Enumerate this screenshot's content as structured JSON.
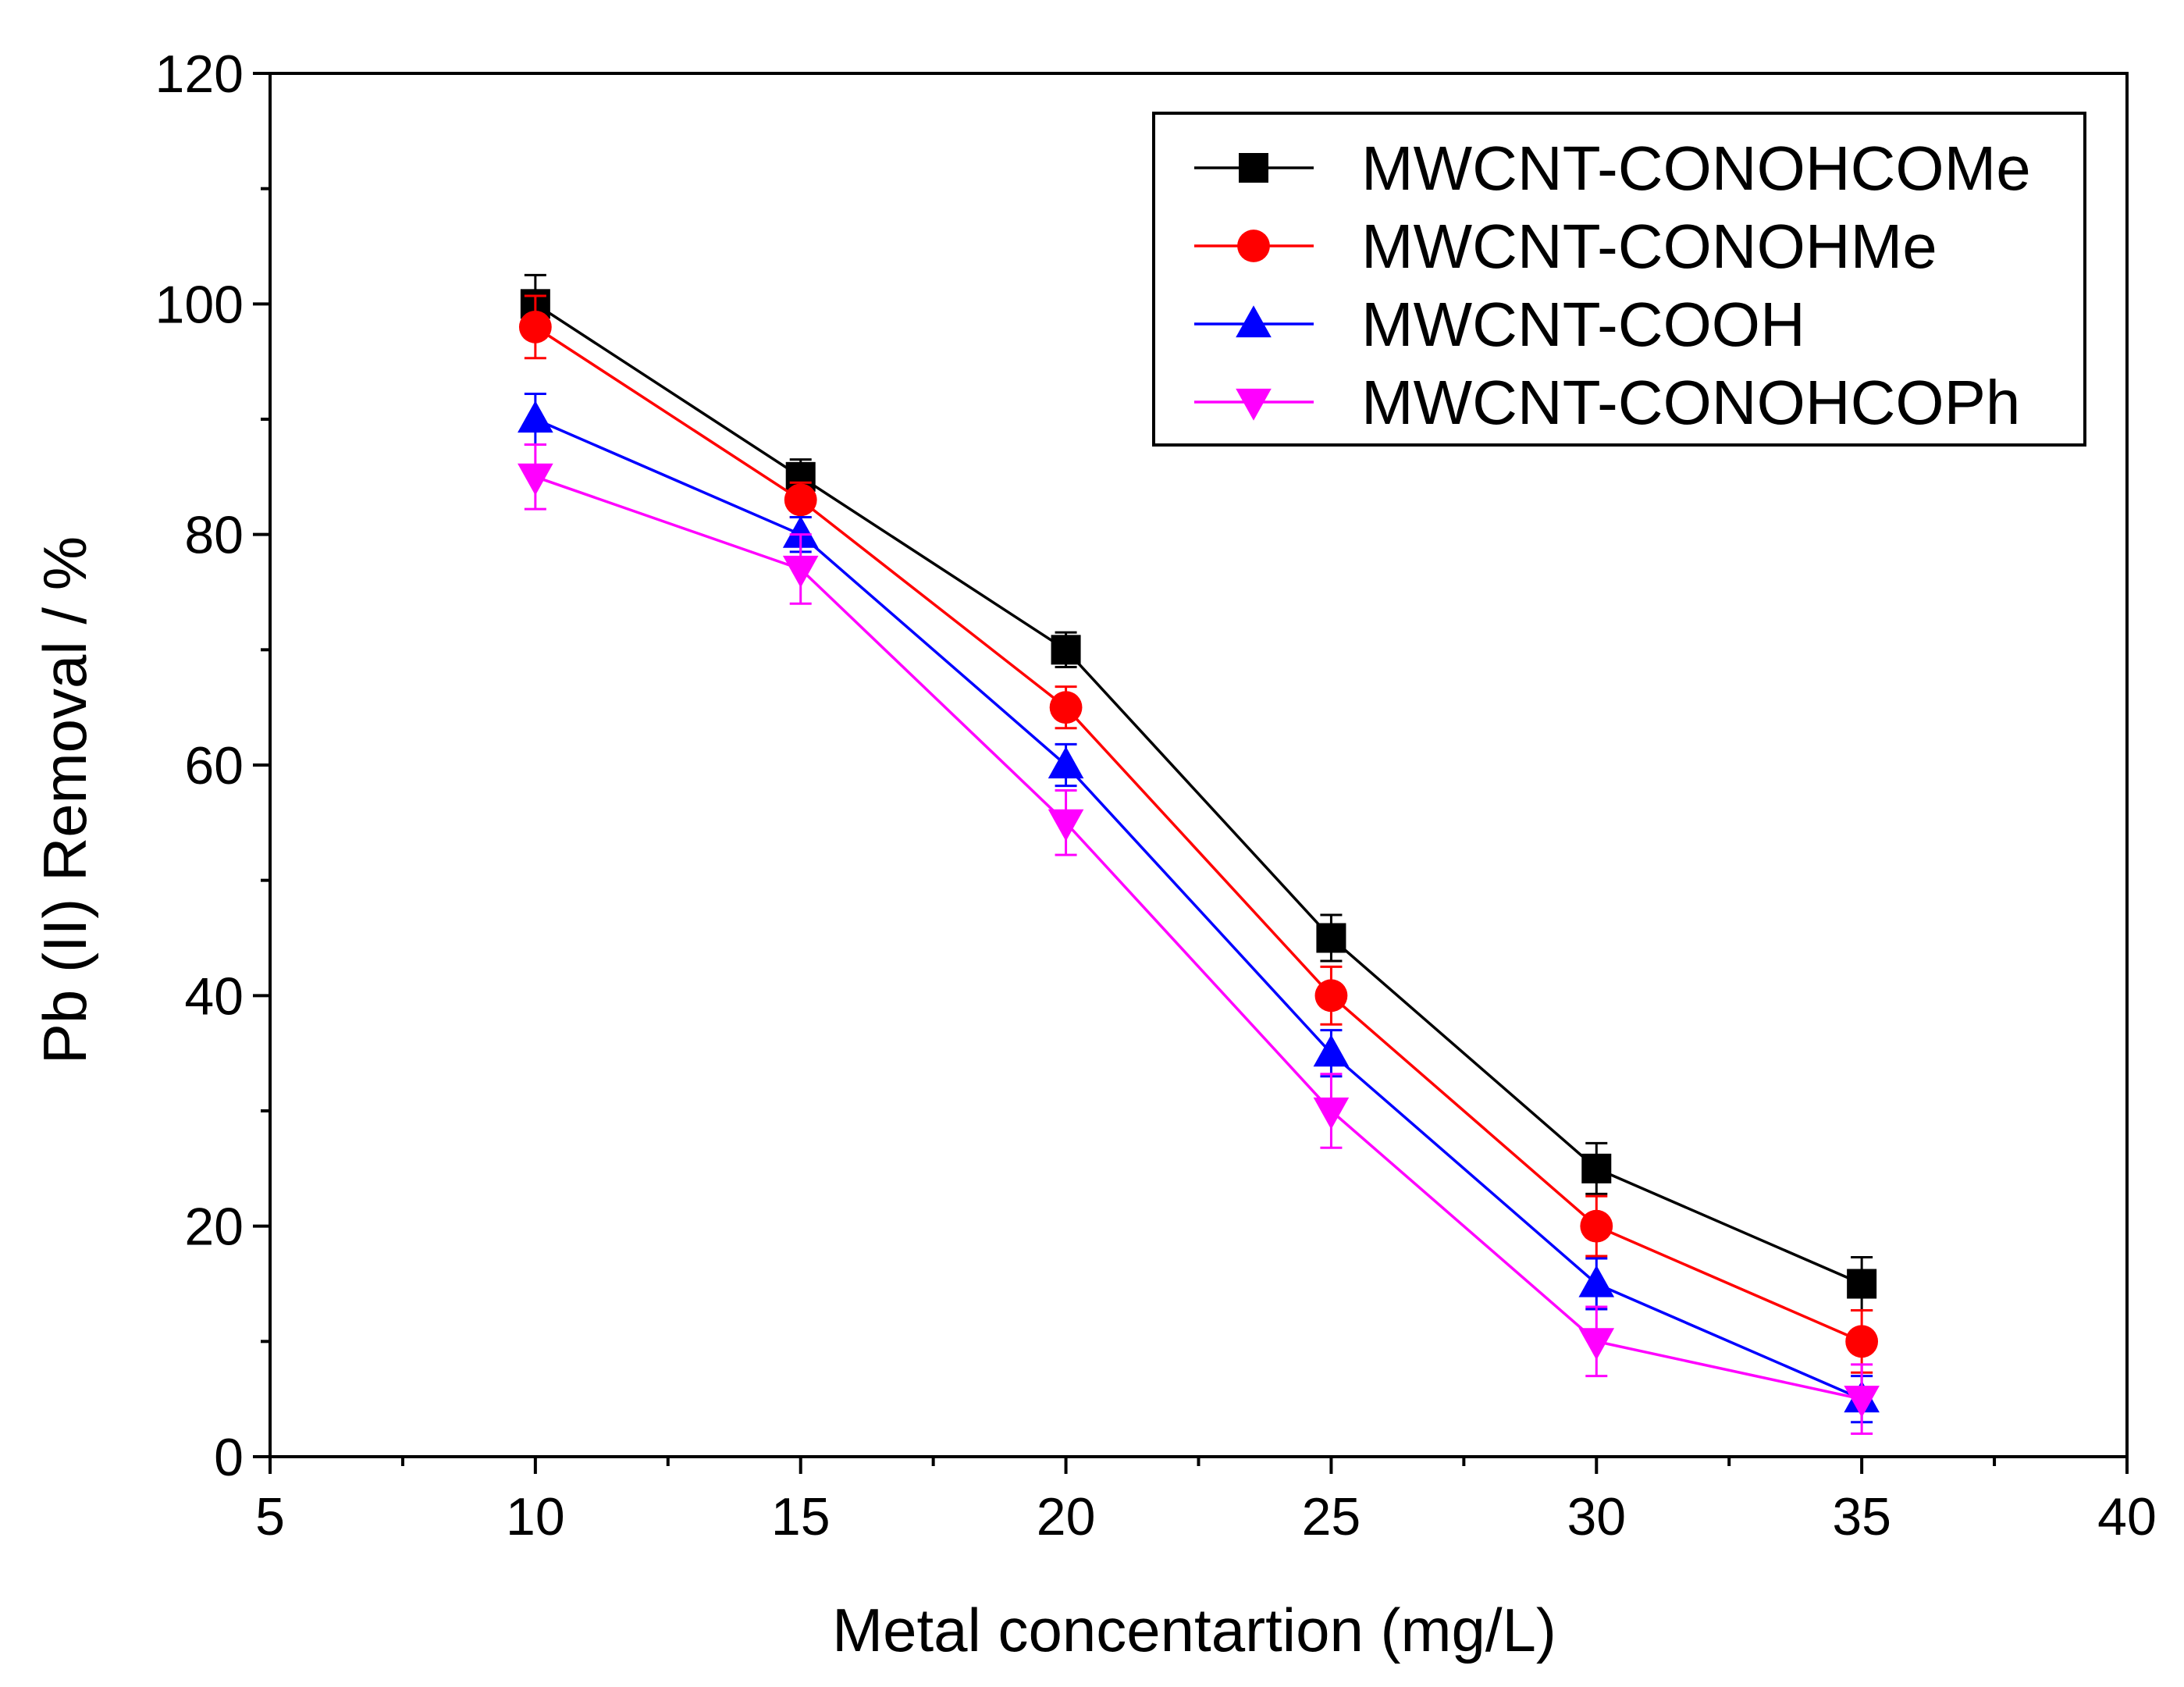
{
  "chart_data": {
    "type": "line",
    "title": "",
    "xlabel": "Metal concentartion (mg/L)",
    "ylabel": "Pb (II) Removal / %",
    "xlim": [
      5,
      40
    ],
    "ylim": [
      0,
      120
    ],
    "xticks": [
      5,
      10,
      15,
      20,
      25,
      30,
      35,
      40
    ],
    "yticks": [
      0,
      20,
      40,
      60,
      80,
      100,
      120
    ],
    "x": [
      10,
      15,
      20,
      25,
      30,
      35
    ],
    "legend_position": "top-right",
    "grid": false,
    "series": [
      {
        "name": "MWCNT-CONOHCOMe",
        "color": "#000000",
        "marker": "square",
        "values": [
          100,
          85,
          70,
          45,
          25,
          15
        ],
        "errors": [
          2.5,
          1.5,
          1.5,
          2,
          2.2,
          2.3
        ]
      },
      {
        "name": "MWCNT-CONOHMe",
        "color": "#ff0000",
        "marker": "circle",
        "values": [
          98,
          83,
          65,
          40,
          20,
          10
        ],
        "errors": [
          2.7,
          1.5,
          1.8,
          2.5,
          2.6,
          2.7
        ]
      },
      {
        "name": "MWCNT-COOH",
        "color": "#0000ff",
        "marker": "triangle-up",
        "values": [
          90,
          80,
          60,
          35,
          15,
          5
        ],
        "errors": [
          2.2,
          1.5,
          1.8,
          2,
          2.2,
          2
        ]
      },
      {
        "name": "MWCNT-CONOHCOPh",
        "color": "#ff00ff",
        "marker": "triangle-down",
        "values": [
          85,
          77,
          55,
          30,
          10,
          5
        ],
        "errors": [
          2.8,
          3,
          2.8,
          3.2,
          3,
          3
        ]
      }
    ]
  }
}
